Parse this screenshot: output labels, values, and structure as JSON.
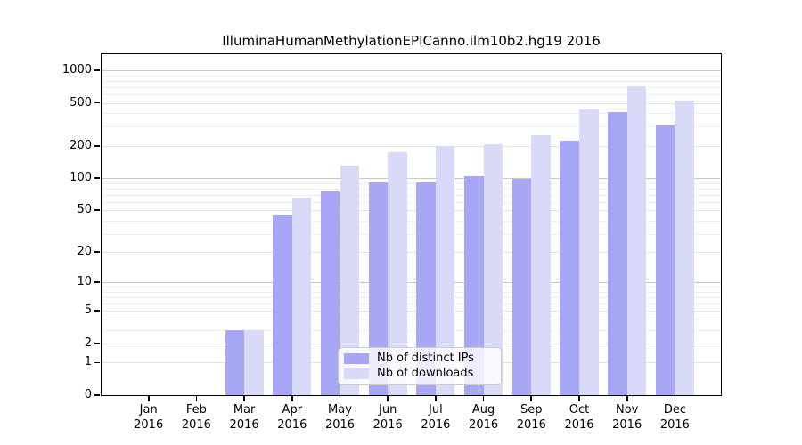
{
  "chart_data": {
    "type": "bar",
    "title": "IlluminaHumanMethylationEPICanno.ilm10b2.hg19 2016",
    "categories": [
      "Jan",
      "Feb",
      "Mar",
      "Apr",
      "May",
      "Jun",
      "Jul",
      "Aug",
      "Sep",
      "Oct",
      "Nov",
      "Dec"
    ],
    "year_label": "2016",
    "series": [
      {
        "name": "Nb of distinct IPs",
        "color": "#a7a7f5",
        "values": [
          0,
          0,
          3,
          45,
          76,
          91,
          92,
          105,
          99,
          222,
          410,
          310
        ]
      },
      {
        "name": "Nb of downloads",
        "color": "#d9d9f8",
        "values": [
          0,
          0,
          3,
          66,
          131,
          175,
          198,
          207,
          249,
          432,
          706,
          520
        ]
      }
    ],
    "y_scale": "log10(1+x)",
    "y_ticks": [
      0,
      1,
      2,
      5,
      10,
      20,
      50,
      100,
      200,
      500,
      1000
    ],
    "y_minor_ticks": [
      3,
      4,
      6,
      7,
      8,
      9,
      30,
      40,
      60,
      70,
      80,
      90,
      300,
      400,
      600,
      700,
      800,
      900
    ],
    "ylim": [
      0,
      1400
    ],
    "grid": true,
    "legend_position": "lower center",
    "colors": {
      "major_power_gridline": "#c8c8c8",
      "major_gridline": "#e2e2e2",
      "minor_gridline": "#efefef",
      "axis": "#000000",
      "legend_border": "#cccccc"
    }
  }
}
